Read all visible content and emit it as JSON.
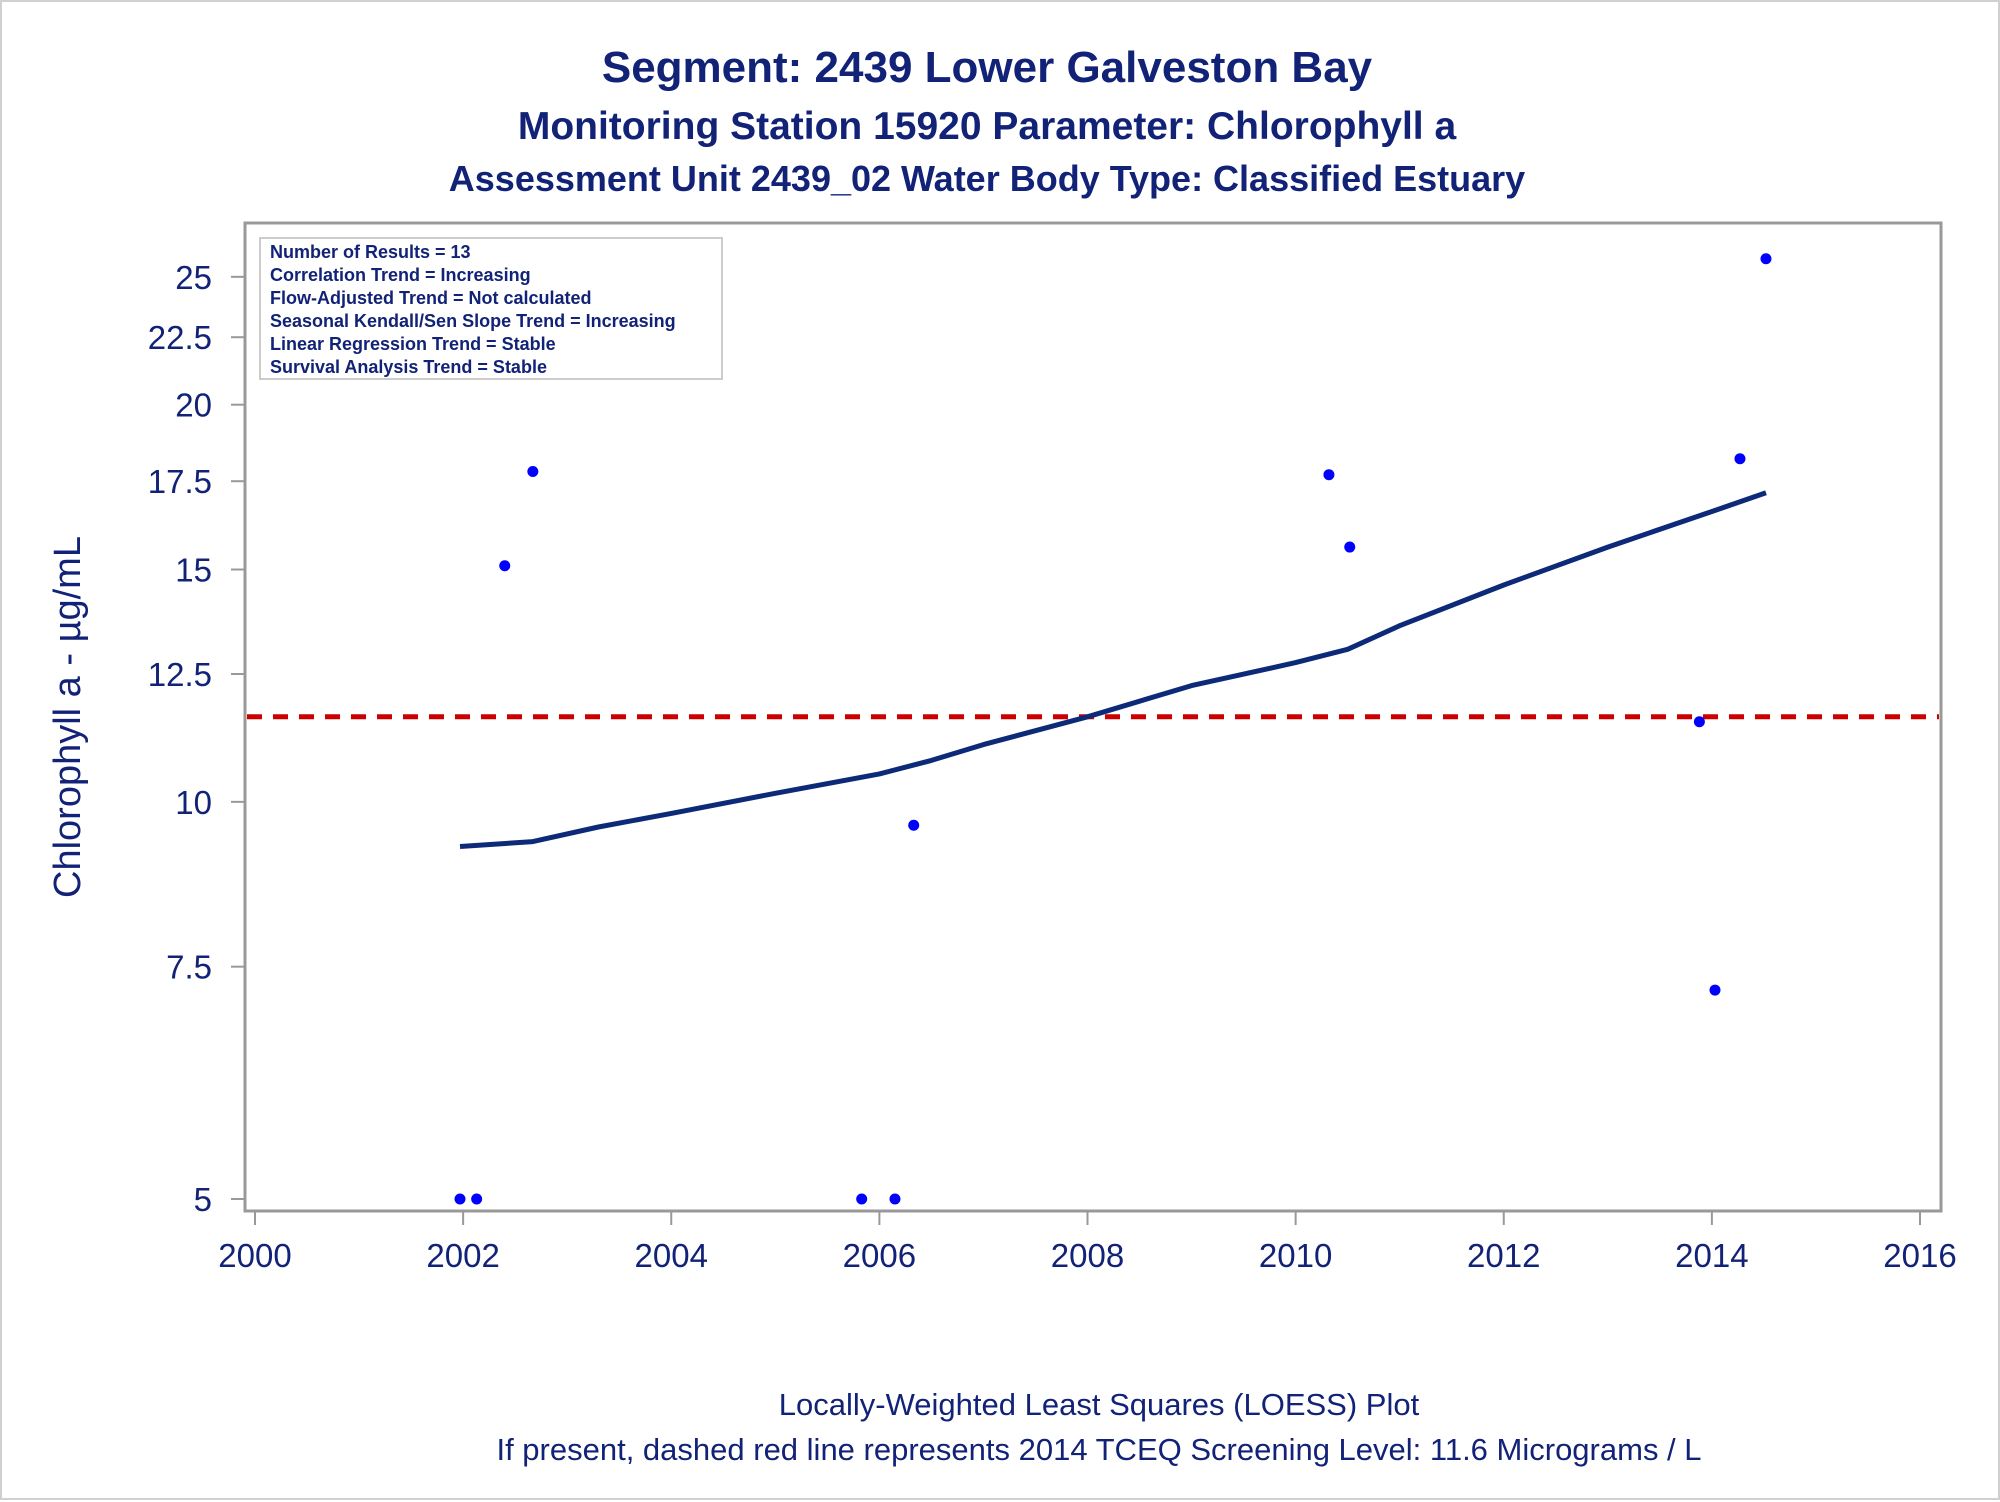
{
  "chart_data": {
    "type": "scatter",
    "title": "Segment: 2439  Lower Galveston Bay",
    "subtitle_1": "Monitoring Station 15920 Parameter: Chlorophyll a",
    "subtitle_2": "Assessment Unit 2439_02   Water Body Type: Classified Estuary",
    "xlabel": "",
    "ylabel": "Chlorophyll a -  µg/mL",
    "y_scale": "log",
    "xlim": [
      2000,
      2016
    ],
    "ylim": [
      5,
      26.8
    ],
    "x_ticks": [
      2000,
      2002,
      2004,
      2006,
      2008,
      2010,
      2012,
      2014,
      2016
    ],
    "y_ticks": [
      5,
      7.5,
      10,
      12.5,
      15,
      17.5,
      20,
      22.5,
      25
    ],
    "y_tick_labels": [
      "5",
      "7.5",
      "10",
      "12.5",
      "15",
      "17.5",
      "20",
      "22.5",
      "25"
    ],
    "grid": false,
    "colors": {
      "points": "#0000ff",
      "loess": "#0d2a78",
      "screening_line": "#cc0000",
      "text": "#112277",
      "axis": "#999999"
    },
    "points": [
      {
        "x": 2001.97,
        "y": 5.0
      },
      {
        "x": 2002.13,
        "y": 5.0
      },
      {
        "x": 2002.4,
        "y": 15.1
      },
      {
        "x": 2002.67,
        "y": 17.8
      },
      {
        "x": 2005.83,
        "y": 5.0
      },
      {
        "x": 2006.15,
        "y": 5.0
      },
      {
        "x": 2006.33,
        "y": 9.6
      },
      {
        "x": 2010.32,
        "y": 17.7
      },
      {
        "x": 2010.52,
        "y": 15.6
      },
      {
        "x": 2013.88,
        "y": 11.5
      },
      {
        "x": 2014.03,
        "y": 7.2
      },
      {
        "x": 2014.27,
        "y": 18.2
      },
      {
        "x": 2014.52,
        "y": 25.8
      }
    ],
    "loess_line": [
      {
        "x": 2001.97,
        "y": 9.25
      },
      {
        "x": 2002.67,
        "y": 9.33
      },
      {
        "x": 2003.3,
        "y": 9.57
      },
      {
        "x": 2004.0,
        "y": 9.8
      },
      {
        "x": 2005.0,
        "y": 10.15
      },
      {
        "x": 2006.0,
        "y": 10.5
      },
      {
        "x": 2006.5,
        "y": 10.75
      },
      {
        "x": 2007.0,
        "y": 11.05
      },
      {
        "x": 2008.0,
        "y": 11.6
      },
      {
        "x": 2009.0,
        "y": 12.25
      },
      {
        "x": 2010.0,
        "y": 12.75
      },
      {
        "x": 2010.5,
        "y": 13.05
      },
      {
        "x": 2011.0,
        "y": 13.6
      },
      {
        "x": 2012.0,
        "y": 14.6
      },
      {
        "x": 2013.0,
        "y": 15.6
      },
      {
        "x": 2014.0,
        "y": 16.6
      },
      {
        "x": 2014.52,
        "y": 17.15
      }
    ],
    "screening_level": 11.6,
    "stats_box": [
      "Number of Results = 13",
      "Correlation Trend = Increasing",
      "Flow-Adjusted Trend = Not calculated",
      "Seasonal Kendall/Sen Slope Trend = Increasing",
      "Linear Regression Trend = Stable",
      "Survival Analysis Trend = Stable"
    ],
    "footnotes": [
      "Locally-Weighted Least Squares (LOESS) Plot",
      "If present, dashed red line represents 2014 TCEQ Screening Level: 11.6 Micrograms / L"
    ]
  }
}
